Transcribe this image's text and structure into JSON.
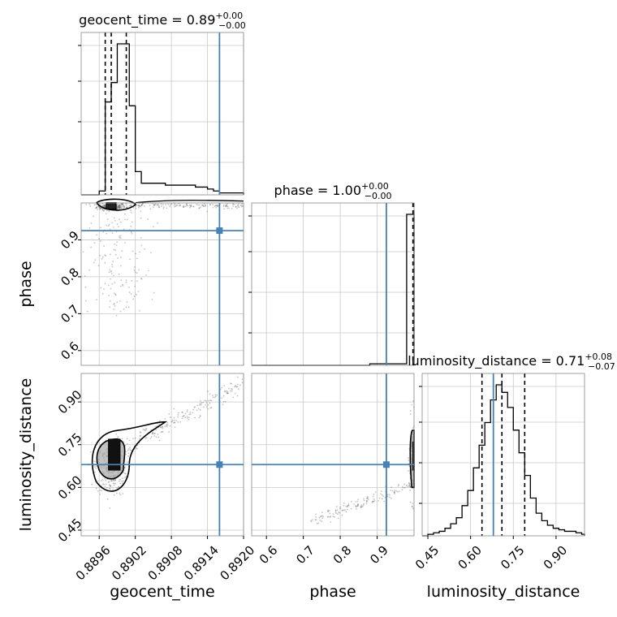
{
  "chart_data": {
    "type": "scatter",
    "kind": "corner-plot",
    "parameters": [
      "geocent_time",
      "phase",
      "luminosity_distance"
    ],
    "truths": {
      "geocent_time": 0.8916,
      "phase": 0.925,
      "luminosity_distance": 0.68
    },
    "grid": true,
    "titles": [
      {
        "param": "geocent_time",
        "text": "geocent_time = 0.89",
        "sup": "+0.00",
        "sub": "−0.00"
      },
      {
        "param": "phase",
        "text": "phase = 1.00",
        "sup": "+0.00",
        "sub": "−0.00"
      },
      {
        "param": "luminosity_distance",
        "text": "luminosity_distance = 0.71",
        "sup": "+0.08",
        "sub": "−0.07"
      }
    ],
    "axes": {
      "geocent_time": {
        "label": "geocent_time",
        "range": [
          0.8893,
          0.892
        ],
        "ticks": [
          0.8896,
          0.8902,
          0.8908,
          0.8914,
          0.892
        ],
        "tick_labels": [
          "0.8896",
          "0.8902",
          "0.8908",
          "0.8914",
          "0.8920"
        ]
      },
      "phase": {
        "label": "phase",
        "range": [
          0.56,
          1.0
        ],
        "ticks": [
          0.6,
          0.7,
          0.8,
          0.9
        ],
        "tick_labels": [
          "0.6",
          "0.7",
          "0.8",
          "0.9"
        ]
      },
      "luminosity_distance": {
        "label": "luminosity_distance",
        "range": [
          0.43,
          1.0
        ],
        "ticks": [
          0.45,
          0.6,
          0.75,
          0.9
        ],
        "tick_labels": [
          "0.45",
          "0.60",
          "0.75",
          "0.90"
        ]
      }
    },
    "histograms": {
      "geocent_time": {
        "bins": [
          0.8893,
          0.8894,
          0.8895,
          0.8896,
          0.8897,
          0.8898,
          0.8899,
          0.89,
          0.8901,
          0.8902,
          0.8903,
          0.8904,
          0.8905,
          0.8906,
          0.8907,
          0.8908,
          0.8909,
          0.891,
          0.8911,
          0.8912,
          0.8913,
          0.8914,
          0.8915,
          0.8916,
          0.8917,
          0.8918,
          0.8919,
          0.892
        ],
        "counts": [
          0,
          0,
          0,
          0.02,
          0.48,
          0.58,
          0.78,
          0.78,
          0.46,
          0.12,
          0.06,
          0.06,
          0.06,
          0.06,
          0.05,
          0.05,
          0.05,
          0.05,
          0.05,
          0.04,
          0.04,
          0.03,
          0.02,
          0.01,
          0.01,
          0.01,
          0.01
        ],
        "quantiles": [
          0.8897,
          0.8898,
          0.89005
        ]
      },
      "phase": {
        "bins": [
          0.56,
          0.6,
          0.64,
          0.68,
          0.72,
          0.76,
          0.8,
          0.84,
          0.88,
          0.92,
          0.96,
          0.98,
          1.0
        ],
        "counts": [
          0,
          0,
          0,
          0,
          0,
          0,
          0,
          0,
          0.01,
          0.01,
          0.01,
          1.0
        ],
        "quantiles": [
          0.997,
          0.9985,
          0.9995
        ]
      },
      "luminosity_distance": {
        "bins": [
          0.43,
          0.45,
          0.47,
          0.49,
          0.51,
          0.53,
          0.55,
          0.57,
          0.59,
          0.61,
          0.63,
          0.65,
          0.67,
          0.69,
          0.71,
          0.73,
          0.75,
          0.77,
          0.79,
          0.81,
          0.83,
          0.85,
          0.87,
          0.89,
          0.91,
          0.93,
          0.95,
          0.97,
          0.99,
          1.0
        ],
        "counts": [
          0,
          0.01,
          0.02,
          0.03,
          0.05,
          0.08,
          0.12,
          0.2,
          0.3,
          0.45,
          0.6,
          0.75,
          0.9,
          1.0,
          0.95,
          0.85,
          0.7,
          0.55,
          0.4,
          0.25,
          0.15,
          0.1,
          0.07,
          0.05,
          0.04,
          0.03,
          0.03,
          0.02,
          0.01
        ],
        "quantiles": [
          0.64,
          0.71,
          0.79
        ]
      }
    }
  }
}
